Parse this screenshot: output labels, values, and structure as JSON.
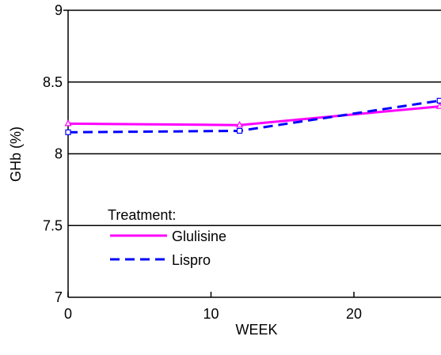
{
  "chart_data": {
    "type": "line",
    "xlabel": "WEEK",
    "ylabel": "GHb (%)",
    "xlim": [
      0,
      26
    ],
    "ylim": [
      7,
      9
    ],
    "x_ticks": [
      "0",
      "10",
      "20"
    ],
    "x_tick_values": [
      0,
      10,
      20
    ],
    "y_ticks": [
      "7",
      "7.5",
      "8",
      "8.5",
      "9"
    ],
    "y_tick_values": [
      7,
      7.5,
      8,
      8.5,
      9
    ],
    "grid": "horizontal",
    "legend": {
      "title": "Treatment:",
      "position": "bottom-left"
    },
    "series": [
      {
        "name": "Glulisine",
        "color": "#ff00ff",
        "line_style": "solid",
        "marker": "triangle",
        "x": [
          0,
          12,
          26
        ],
        "y": [
          8.21,
          8.2,
          8.33
        ]
      },
      {
        "name": "Lispro",
        "color": "#0000ff",
        "line_style": "dashed",
        "marker": "square",
        "x": [
          0,
          12,
          26
        ],
        "y": [
          8.15,
          8.16,
          8.37
        ]
      }
    ]
  }
}
